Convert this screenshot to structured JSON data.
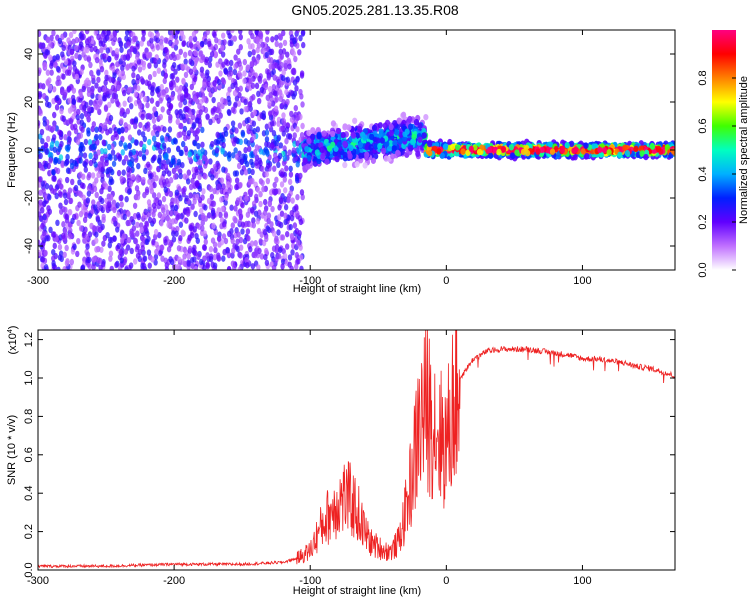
{
  "title": "GN05.2025.281.13.35.R08",
  "chart_data": [
    {
      "type": "heatmap",
      "xlabel": "Height of straight line (km)",
      "ylabel": "Frequency (Hz)",
      "xlim": [
        -300,
        168
      ],
      "ylim": [
        -50,
        50
      ],
      "x_ticks": [
        -300,
        -200,
        -100,
        0,
        100
      ],
      "x_tick_labels": [
        "-300",
        "-200",
        "-100",
        "0",
        "100"
      ],
      "y_ticks": [
        40,
        20,
        0,
        -20,
        -40
      ],
      "y_tick_labels": [
        "40",
        "20",
        "0",
        "-20",
        "-40"
      ],
      "colorbar": {
        "label": "Normalized spectral amplitude",
        "range": [
          0,
          1
        ],
        "ticks": [
          0.0,
          0.2,
          0.4,
          0.6,
          0.8
        ],
        "tick_labels": [
          "0.0",
          "0.2",
          "0.4",
          "0.6",
          "0.8"
        ],
        "colors": [
          "#ffffff",
          "#c070ff",
          "#6000ff",
          "#0020ff",
          "#00b0ff",
          "#00ffc0",
          "#40ff00",
          "#ffff00",
          "#ff8000",
          "#ff0000",
          "#ff0080"
        ]
      },
      "regions": [
        {
          "x_range": [
            -300,
            -105
          ],
          "center_hz": 0,
          "spread_hz": 50,
          "amplitude": 0.2
        },
        {
          "x_range": [
            -105,
            -15
          ],
          "center_hz": 2,
          "spread_hz": 6,
          "amplitude": 0.5
        },
        {
          "x_range": [
            -15,
            168
          ],
          "center_hz": 0,
          "spread_hz": 2,
          "amplitude": 0.95
        }
      ]
    },
    {
      "type": "line",
      "xlabel": "Height of straight line (km)",
      "ylabel": "SNR (10 * v/v)",
      "y_multiplier_label": "(x10",
      "y_multiplier_exp": "4",
      "y_multiplier_close": ")",
      "xlim": [
        -300,
        168
      ],
      "ylim": [
        0,
        1.25
      ],
      "x_ticks": [
        -300,
        -200,
        -100,
        0,
        100
      ],
      "x_tick_labels": [
        "-300",
        "-200",
        "-100",
        "0",
        "100"
      ],
      "y_ticks": [
        0.0,
        0.2,
        0.4,
        0.6,
        0.8,
        1.0,
        1.2
      ],
      "y_tick_labels": [
        "0.0",
        "0.2",
        "0.4",
        "0.6",
        "0.8",
        "1.0",
        "1.2"
      ],
      "color": "#ee2222",
      "series": [
        {
          "x": [
            -300,
            -250,
            -200,
            -150,
            -120,
            -110,
            -100,
            -95,
            -90,
            -85,
            -80,
            -75,
            -70,
            -65,
            -60,
            -55,
            -50,
            -45,
            -40,
            -35,
            -30,
            -25,
            -20,
            -15,
            -10,
            -5,
            0,
            5,
            10,
            20,
            30,
            40,
            50,
            60,
            70,
            80,
            90,
            100,
            110,
            120,
            130,
            140,
            150,
            160,
            168
          ],
          "y": [
            0.02,
            0.02,
            0.03,
            0.03,
            0.04,
            0.06,
            0.1,
            0.18,
            0.25,
            0.3,
            0.35,
            0.38,
            0.36,
            0.3,
            0.2,
            0.14,
            0.12,
            0.1,
            0.1,
            0.15,
            0.3,
            0.5,
            0.75,
            0.85,
            0.8,
            0.7,
            0.65,
            0.85,
            1.0,
            1.1,
            1.14,
            1.15,
            1.15,
            1.15,
            1.14,
            1.13,
            1.12,
            1.1,
            1.1,
            1.09,
            1.08,
            1.06,
            1.05,
            1.03,
            1.01
          ]
        }
      ]
    }
  ]
}
